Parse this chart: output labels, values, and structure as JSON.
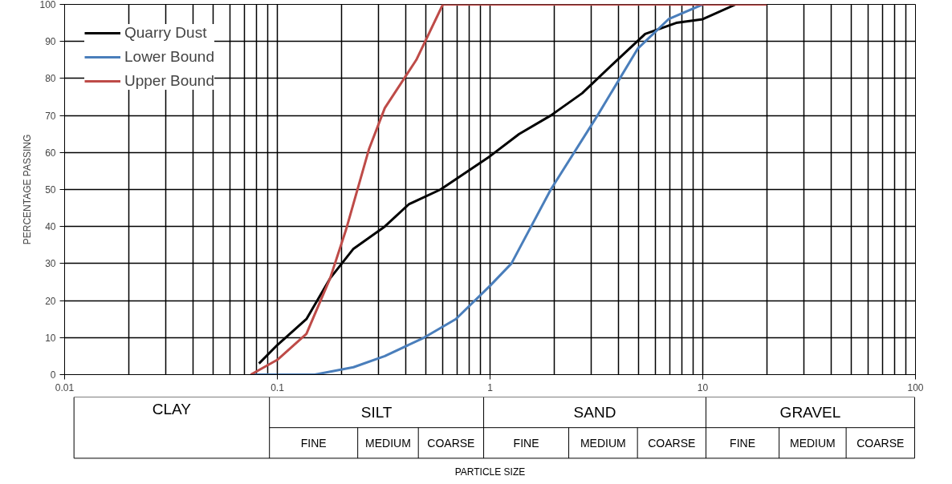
{
  "chart_data": {
    "type": "line",
    "ylabel": "PERCENTAGE PASSING",
    "log": "x",
    "grid": true,
    "legend": "top left",
    "line_style": "solid",
    "marker": "none",
    "xlim": [
      0.01,
      100
    ],
    "xticks": [
      0.01,
      0.1,
      1,
      10,
      100
    ],
    "ylim": [
      0,
      100
    ],
    "yticks": [
      0,
      10,
      20,
      30,
      40,
      50,
      60,
      70,
      80,
      90,
      100
    ],
    "series": [
      {
        "name": "Quarry Dust",
        "color": "#000000",
        "x": [
          0.082,
          0.1,
          0.137,
          0.177,
          0.228,
          0.32,
          0.415,
          0.585,
          1.0,
          1.37,
          1.93,
          2.71,
          3.8,
          5.36,
          7.5,
          10,
          14.3,
          20
        ],
        "values": [
          3,
          8,
          15,
          26,
          34,
          40,
          46,
          50,
          59,
          65,
          70,
          76,
          84,
          92,
          95,
          96,
          100,
          100
        ]
      },
      {
        "name": "Lower Bound",
        "color": "#4a7ebb",
        "x": [
          0.075,
          0.15,
          0.228,
          0.32,
          0.49,
          0.69,
          1.0,
          1.26,
          1.93,
          3.2,
          4.94,
          6.9,
          10
        ],
        "values": [
          0,
          0,
          2,
          5,
          10,
          15,
          24,
          30,
          50,
          70,
          88,
          96,
          100
        ]
      },
      {
        "name": "Upper Bound",
        "color": "#be4b48",
        "x": [
          0.075,
          0.1,
          0.137,
          0.177,
          0.21,
          0.27,
          0.32,
          0.45,
          0.6,
          20
        ],
        "values": [
          0,
          4,
          11,
          26,
          39,
          61,
          72,
          85,
          100,
          100
        ]
      }
    ],
    "annotations": [
      "CLAY",
      "SILT",
      "SAND",
      "GRAVEL",
      "FINE",
      "MEDIUM",
      "COARSE",
      "FINE",
      "MEDIUM",
      "COARSE",
      "FINE",
      "MEDIUM",
      "COARSE",
      "PARTICLE SIZE"
    ]
  }
}
